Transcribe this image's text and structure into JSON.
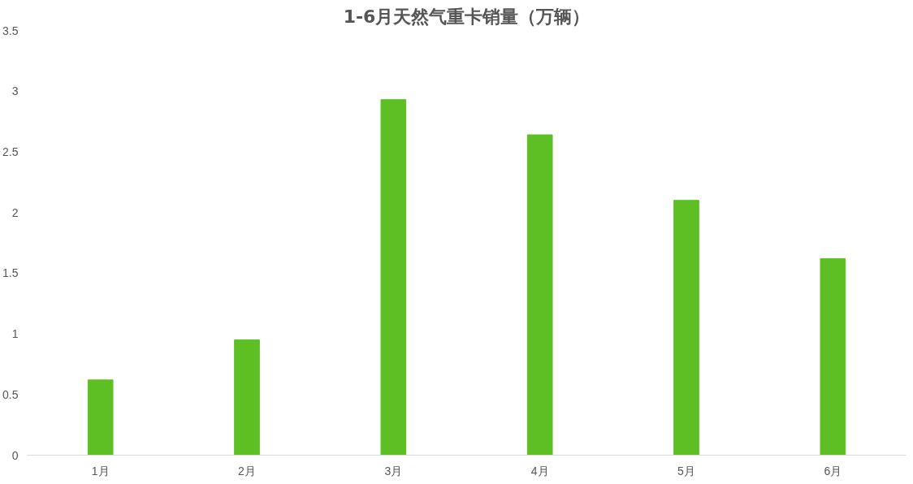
{
  "chart_data": {
    "type": "bar",
    "title": "1-6月天然气重卡销量（万辆）",
    "categories": [
      "1月",
      "2月",
      "3月",
      "4月",
      "5月",
      "6月"
    ],
    "values": [
      0.62,
      0.95,
      2.93,
      2.64,
      2.1,
      1.62
    ],
    "color": "#5dbf24",
    "ylim": [
      0,
      3.5
    ],
    "yticks": [
      0,
      0.5,
      1,
      1.5,
      2,
      2.5,
      3,
      3.5
    ],
    "grid": false
  }
}
